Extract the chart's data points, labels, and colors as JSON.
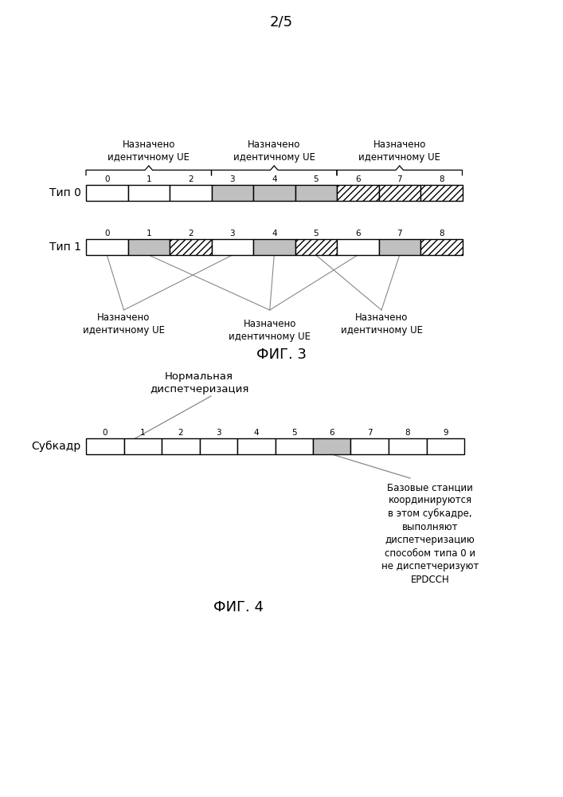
{
  "page_label": "2/5",
  "fig3_label": "ФИГ. 3",
  "fig4_label": "ФИГ. 4",
  "type0_label": "Тип 0",
  "type1_label": "Тип 1",
  "subframe_label": "Субкадр",
  "type0_white": [
    0,
    1,
    2
  ],
  "type0_gray": [
    3,
    4,
    5
  ],
  "type0_hatch": [
    6,
    7,
    8
  ],
  "type1_white": [
    0,
    3,
    6
  ],
  "type1_gray": [
    1,
    4,
    7
  ],
  "type1_hatch": [
    2,
    5,
    8
  ],
  "subframe_gray": [
    6
  ],
  "normal_dispatch_label": "Нормальная\nдиспетчеризация",
  "coord_label": "Базовые станции\nкоординируются\nв этом субкадре,\nвыполняют\nдиспетчеризацию\nспособом типа 0 и\nне диспетчеризуют\nЕРDCCН",
  "gray_color": "#c0c0c0",
  "white_color": "#ffffff",
  "bg_color": "#ffffff",
  "font_color": "#000000",
  "line_color": "#888888"
}
